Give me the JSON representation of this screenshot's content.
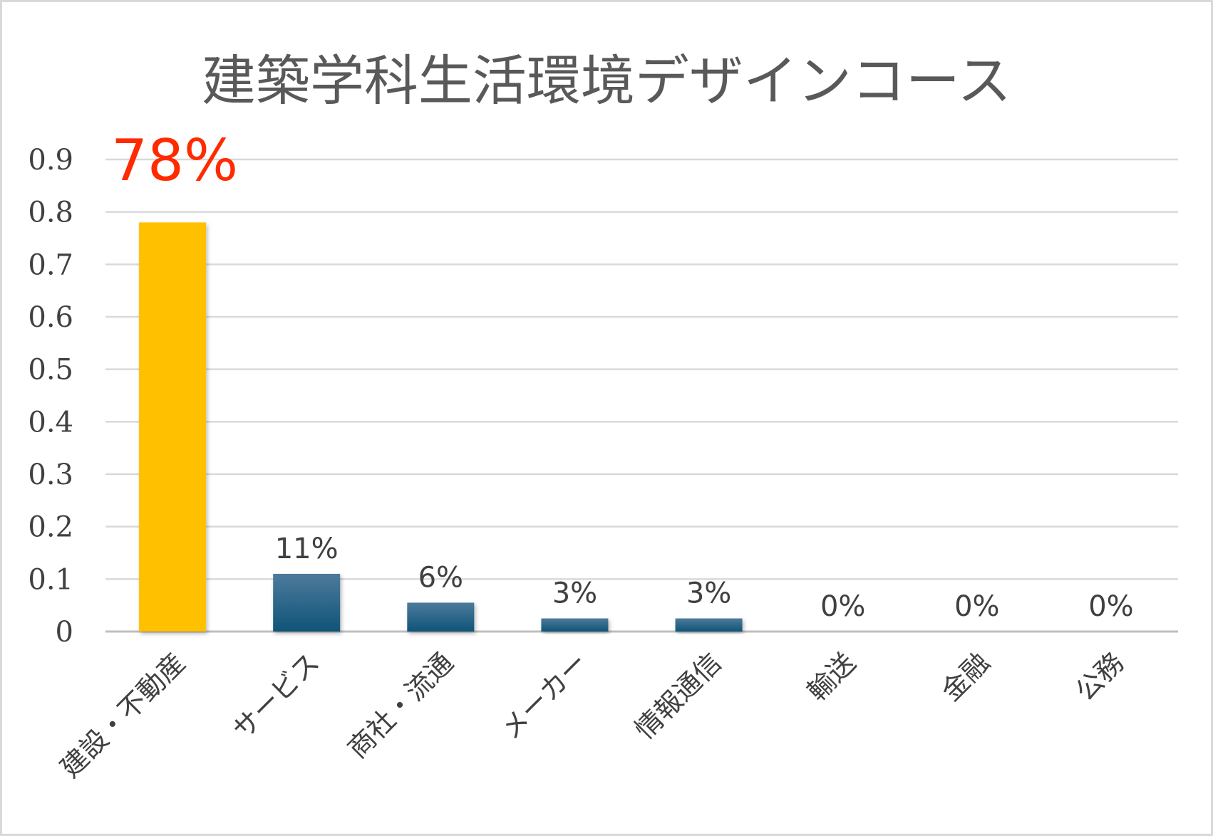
{
  "chart_data": {
    "type": "bar",
    "title": "建築学科生活環境デザインコース",
    "categories": [
      "建設・不動産",
      "サービス",
      "商社・流通",
      "メーカー",
      "情報通信",
      "輸送",
      "金融",
      "公務"
    ],
    "values": [
      0.78,
      0.11,
      0.055,
      0.025,
      0.025,
      0,
      0,
      0
    ],
    "data_labels": [
      "78%",
      "11%",
      "6%",
      "3%",
      "3%",
      "0%",
      "0%",
      "0%"
    ],
    "ylim": [
      0,
      0.9
    ],
    "yticks": [
      0,
      0.1,
      0.2,
      0.3,
      0.4,
      0.5,
      0.6,
      0.7,
      0.8,
      0.9
    ],
    "ytick_labels": [
      "0",
      "0.1",
      "0.2",
      "0.3",
      "0.4",
      "0.5",
      "0.6",
      "0.7",
      "0.8",
      "0.9"
    ],
    "grid": true,
    "highlight_index": 0,
    "colors": {
      "highlight_bar": "#ffc000",
      "bar_top": "#4d7a9c",
      "bar_bottom": "#0f5478",
      "highlight_label": "#ff2a00",
      "gridline": "#d9d9d9"
    }
  }
}
